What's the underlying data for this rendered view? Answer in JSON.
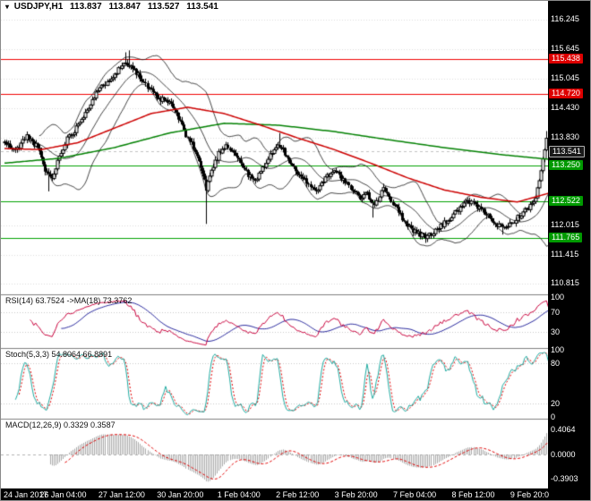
{
  "header": {
    "marker": "▾",
    "symbol": "USDJPY,H1",
    "open": "113.837",
    "high": "113.847",
    "low": "113.527",
    "close": "113.541"
  },
  "panels": {
    "rsi_label": "RSI(14) 63.7524 ->MA(18) 73.3762",
    "stoch_label": "Stoch(5,3,3) 54.8064 66.8891",
    "macd_label": "MACD(12,26,9) 0.3329 0.3587"
  },
  "price_scale": {
    "labels": [
      {
        "text": "116.245",
        "value": 116.245,
        "type": "plain"
      },
      {
        "text": "115.645",
        "value": 115.645,
        "type": "plain"
      },
      {
        "text": "115.438",
        "value": 115.438,
        "type": "red"
      },
      {
        "text": "115.045",
        "value": 115.045,
        "type": "plain"
      },
      {
        "text": "114.720",
        "value": 114.72,
        "type": "red"
      },
      {
        "text": "114.430",
        "value": 114.43,
        "type": "plain"
      },
      {
        "text": "113.830",
        "value": 113.83,
        "type": "plain"
      },
      {
        "text": "113.541",
        "value": 113.541,
        "type": "current"
      },
      {
        "text": "113.250",
        "value": 113.25,
        "type": "green"
      },
      {
        "text": "112.522",
        "value": 112.522,
        "type": "green"
      },
      {
        "text": "112.015",
        "value": 112.015,
        "type": "plain"
      },
      {
        "text": "111.765",
        "value": 111.765,
        "type": "green"
      },
      {
        "text": "111.415",
        "value": 111.415,
        "type": "plain"
      },
      {
        "text": "110.815",
        "value": 110.815,
        "type": "plain"
      }
    ]
  },
  "rsi_scale": [
    {
      "text": "100",
      "value": 100
    },
    {
      "text": "70",
      "value": 70
    },
    {
      "text": "30",
      "value": 30
    }
  ],
  "stoch_scale": [
    {
      "text": "100",
      "value": 100
    },
    {
      "text": "80",
      "value": 80
    },
    {
      "text": "20",
      "value": 20
    },
    {
      "text": "0",
      "value": 0
    }
  ],
  "macd_scale": [
    {
      "text": "0.4064",
      "value": 0.4064
    },
    {
      "text": "0.0000",
      "value": 0
    },
    {
      "text": "-0.3903",
      "value": -0.3903
    }
  ],
  "x_axis": {
    "labels": [
      {
        "text": "24 Jan 2017",
        "bar": 0
      },
      {
        "text": "26 Jan 04:00",
        "bar": 32
      },
      {
        "text": "27 Jan 12:00",
        "bar": 64
      },
      {
        "text": "30 Jan 20:00",
        "bar": 96
      },
      {
        "text": "1 Feb 04:00",
        "bar": 128
      },
      {
        "text": "2 Feb 12:00",
        "bar": 160
      },
      {
        "text": "3 Feb 20:00",
        "bar": 192
      },
      {
        "text": "7 Feb 04:00",
        "bar": 224
      },
      {
        "text": "8 Feb 12:00",
        "bar": 256
      },
      {
        "text": "9 Feb 20:00",
        "bar": 288
      }
    ]
  },
  "chart_data": {
    "type": "candlestick",
    "symbol": "USDJPY",
    "timeframe": "H1",
    "bars": 298,
    "ylim": [
      110.62,
      116.38
    ],
    "close_anchors": [
      [
        0,
        113.72
      ],
      [
        6,
        113.55
      ],
      [
        12,
        113.85
      ],
      [
        18,
        113.62
      ],
      [
        22,
        113.15
      ],
      [
        26,
        112.98
      ],
      [
        30,
        113.45
      ],
      [
        34,
        113.8
      ],
      [
        38,
        113.98
      ],
      [
        44,
        114.35
      ],
      [
        50,
        114.72
      ],
      [
        56,
        115.0
      ],
      [
        62,
        115.22
      ],
      [
        66,
        115.38
      ],
      [
        70,
        115.28
      ],
      [
        74,
        115.05
      ],
      [
        78,
        114.85
      ],
      [
        84,
        114.62
      ],
      [
        90,
        114.55
      ],
      [
        94,
        114.32
      ],
      [
        98,
        113.95
      ],
      [
        102,
        113.7
      ],
      [
        106,
        113.35
      ],
      [
        110,
        112.78
      ],
      [
        113,
        113.15
      ],
      [
        117,
        113.5
      ],
      [
        121,
        113.68
      ],
      [
        125,
        113.52
      ],
      [
        129,
        113.3
      ],
      [
        133,
        113.05
      ],
      [
        137,
        112.92
      ],
      [
        141,
        113.2
      ],
      [
        146,
        113.52
      ],
      [
        150,
        113.68
      ],
      [
        155,
        113.38
      ],
      [
        160,
        113.05
      ],
      [
        165,
        112.92
      ],
      [
        170,
        112.72
      ],
      [
        175,
        113.0
      ],
      [
        180,
        113.18
      ],
      [
        185,
        112.95
      ],
      [
        190,
        112.72
      ],
      [
        194,
        112.6
      ],
      [
        198,
        112.68
      ],
      [
        201,
        112.42
      ],
      [
        204,
        112.55
      ],
      [
        207,
        112.82
      ],
      [
        210,
        112.6
      ],
      [
        214,
        112.35
      ],
      [
        218,
        112.12
      ],
      [
        222,
        111.95
      ],
      [
        226,
        111.85
      ],
      [
        230,
        111.78
      ],
      [
        234,
        111.88
      ],
      [
        238,
        112.0
      ],
      [
        242,
        112.12
      ],
      [
        246,
        112.28
      ],
      [
        250,
        112.42
      ],
      [
        254,
        112.5
      ],
      [
        258,
        112.4
      ],
      [
        262,
        112.28
      ],
      [
        266,
        112.15
      ],
      [
        270,
        112.0
      ],
      [
        274,
        111.95
      ],
      [
        278,
        112.12
      ],
      [
        282,
        112.25
      ],
      [
        286,
        112.38
      ],
      [
        289,
        112.52
      ],
      [
        291,
        112.75
      ],
      [
        293,
        113.15
      ],
      [
        295,
        113.55
      ],
      [
        296,
        113.85
      ],
      [
        297,
        113.55
      ]
    ],
    "spikes": [
      {
        "i": 24,
        "l": 112.72
      },
      {
        "i": 66,
        "h": 115.58
      },
      {
        "i": 68,
        "h": 115.62
      },
      {
        "i": 110,
        "l": 112.05
      },
      {
        "i": 150,
        "h": 113.92
      },
      {
        "i": 201,
        "l": 112.18
      },
      {
        "i": 230,
        "l": 111.66
      },
      {
        "i": 272,
        "l": 111.83
      },
      {
        "i": 296,
        "h": 113.96
      }
    ],
    "overlays": {
      "bollinger_period": 20,
      "bollinger_dev": 2,
      "red_ma_anchors": [
        [
          0,
          113.6
        ],
        [
          20,
          113.58
        ],
        [
          40,
          113.72
        ],
        [
          60,
          114.02
        ],
        [
          80,
          114.32
        ],
        [
          100,
          114.45
        ],
        [
          120,
          114.32
        ],
        [
          140,
          114.08
        ],
        [
          160,
          113.82
        ],
        [
          180,
          113.58
        ],
        [
          200,
          113.3
        ],
        [
          220,
          113.0
        ],
        [
          240,
          112.75
        ],
        [
          260,
          112.6
        ],
        [
          280,
          112.5
        ],
        [
          297,
          112.68
        ]
      ],
      "green_ma_anchors": [
        [
          0,
          113.3
        ],
        [
          30,
          113.4
        ],
        [
          60,
          113.62
        ],
        [
          90,
          113.92
        ],
        [
          120,
          114.12
        ],
        [
          150,
          114.08
        ],
        [
          180,
          113.95
        ],
        [
          210,
          113.78
        ],
        [
          240,
          113.62
        ],
        [
          270,
          113.48
        ],
        [
          297,
          113.38
        ]
      ],
      "hlines": [
        {
          "value": 115.438,
          "color": "#f00000",
          "role": "resistance"
        },
        {
          "value": 114.72,
          "color": "#f00000",
          "role": "resistance"
        },
        {
          "value": 113.25,
          "color": "#00a000",
          "role": "support"
        },
        {
          "value": 112.522,
          "color": "#00a000",
          "role": "support"
        },
        {
          "value": 111.765,
          "color": "#00a000",
          "role": "support"
        }
      ]
    },
    "indicators": {
      "rsi": {
        "period": 14,
        "ma_period": 18,
        "current": 63.7524,
        "ma_current": 73.3762,
        "levels": [
          70,
          30
        ]
      },
      "stoch": {
        "k": 5,
        "d": 3,
        "slowing": 3,
        "current": 54.8064,
        "signal_current": 66.8891,
        "levels": [
          80,
          20
        ]
      },
      "macd": {
        "fast": 12,
        "slow": 26,
        "signal": 9,
        "current": 0.3329,
        "signal_current": 0.3587
      }
    },
    "colors": {
      "candle": "#000000",
      "bollinger": "#151515",
      "ma_fast": "#cc0000",
      "ma_slow": "#008000",
      "rsi": "#c8003c",
      "rsi_ma": "#26269c",
      "stoch_main": "#1faaa0",
      "stoch_signal": "#e00000",
      "macd_hist": "#a8a8a8",
      "macd_signal": "#e00000",
      "grid": "#dcdcdc",
      "separator": "#7f7f7f",
      "scale_bg": "#000000",
      "scale_text": "#ffffff",
      "badge_red": "#dd0000",
      "badge_green": "#009a00",
      "badge_current_bg": "#1a1a1a",
      "badge_current_border": "#b0b0b0"
    }
  }
}
